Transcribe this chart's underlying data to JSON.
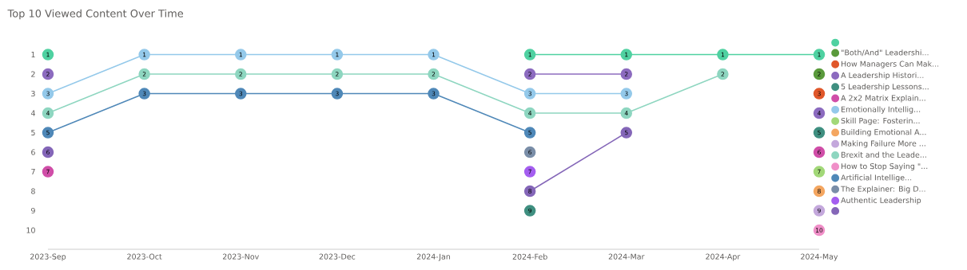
{
  "chart_data": {
    "type": "line",
    "title": "Top 10 Viewed Content Over Time",
    "categories": [
      "2023-Sep",
      "2023-Oct",
      "2023-Nov",
      "2023-Dec",
      "2024-Jan",
      "2024-Feb",
      "2024-Mar",
      "2024-Apr",
      "2024-May"
    ],
    "ylim": [
      10,
      1
    ],
    "yticks": [
      1,
      2,
      3,
      4,
      5,
      6,
      7,
      8,
      9,
      10
    ],
    "marker": "circle",
    "data_labels": true,
    "legend": "right",
    "grid": false,
    "series": [
      {
        "color": "#4fd1a1",
        "values": [
          1,
          null,
          null,
          null,
          null,
          1,
          1,
          1,
          1
        ]
      },
      {
        "name": "\"Both/And\" Leadershi...",
        "color": "#5a9a3c",
        "values": [
          null,
          null,
          null,
          null,
          null,
          null,
          null,
          null,
          2
        ]
      },
      {
        "name": "How Managers Can Mak...",
        "color": "#e0572a",
        "values": [
          null,
          null,
          null,
          null,
          null,
          null,
          null,
          null,
          3
        ]
      },
      {
        "name": "A Leadership Histori...",
        "color": "#8c6bbf",
        "values": [
          2,
          null,
          null,
          null,
          null,
          2,
          2,
          null,
          4
        ]
      },
      {
        "name": "5 Leadership Lessons...",
        "type": "scatter",
        "color": "#3f8f80",
        "values": [
          null,
          null,
          null,
          null,
          null,
          9,
          null,
          null,
          5
        ]
      },
      {
        "name": "A 2x2 Matrix Explain...",
        "type": "scatter",
        "color": "#d04ea8",
        "values": [
          7,
          null,
          null,
          null,
          null,
          null,
          null,
          null,
          6
        ]
      },
      {
        "name": "Emotionally Intellig...",
        "color": "#94c9ea",
        "values": [
          3,
          1,
          1,
          1,
          1,
          3,
          3,
          null,
          null
        ]
      },
      {
        "name": "Skill Page: Fosterin...",
        "color": "#a2d878",
        "values": [
          null,
          null,
          null,
          null,
          null,
          null,
          null,
          null,
          7
        ]
      },
      {
        "name": "Building Emotional A...",
        "color": "#f4a660",
        "values": [
          null,
          null,
          null,
          null,
          null,
          null,
          null,
          null,
          8
        ]
      },
      {
        "name": "Making Failure More ...",
        "color": "#c4a8dc",
        "values": [
          null,
          null,
          null,
          null,
          null,
          null,
          null,
          null,
          9
        ]
      },
      {
        "name": "Brexit and the Leade...",
        "color": "#8ed6c0",
        "values": [
          4,
          2,
          2,
          2,
          2,
          4,
          4,
          2,
          null
        ]
      },
      {
        "name": "How to Stop Saying \"...",
        "color": "#f08fc8",
        "values": [
          null,
          null,
          null,
          null,
          null,
          null,
          null,
          null,
          10
        ]
      },
      {
        "name": "Artificial Intellige...",
        "color": "#4f88b8",
        "values": [
          5,
          3,
          3,
          3,
          3,
          5,
          null,
          null,
          null
        ]
      },
      {
        "name": "The Explainer: Big D...",
        "color": "#7a8ea8",
        "values": [
          null,
          null,
          null,
          null,
          null,
          6,
          null,
          null,
          null
        ]
      },
      {
        "name": "Authentic Leadership",
        "color": "#a45ef0",
        "values": [
          null,
          null,
          null,
          null,
          null,
          7,
          null,
          null,
          null
        ]
      },
      {
        "color": "#8466b8",
        "values": [
          6,
          null,
          null,
          null,
          null,
          8,
          5,
          null,
          null
        ]
      }
    ]
  }
}
